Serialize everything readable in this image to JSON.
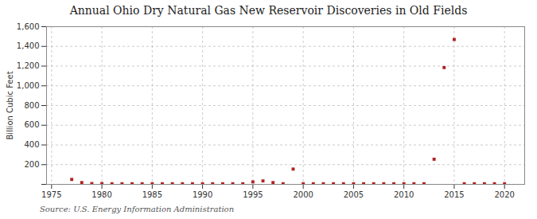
{
  "chart_data": {
    "type": "scatter",
    "title": "Annual Ohio Dry Natural Gas New Reservoir Discoveries in Old Fields",
    "ylabel": "Billion Cubic Feet",
    "annotation": "Source: U.S. Energy Information Administration",
    "x": [
      1977,
      1978,
      1979,
      1980,
      1981,
      1982,
      1983,
      1984,
      1985,
      1986,
      1987,
      1988,
      1989,
      1990,
      1991,
      1992,
      1993,
      1994,
      1995,
      1996,
      1997,
      1998,
      1999,
      2000,
      2001,
      2002,
      2003,
      2004,
      2005,
      2006,
      2007,
      2008,
      2009,
      2010,
      2011,
      2012,
      2013,
      2014,
      2015,
      2016,
      2017,
      2018,
      2019,
      2020
    ],
    "values": [
      50,
      18,
      8,
      8,
      6,
      6,
      6,
      6,
      6,
      6,
      6,
      6,
      6,
      6,
      6,
      6,
      6,
      6,
      25,
      35,
      18,
      6,
      155,
      6,
      6,
      6,
      6,
      6,
      6,
      6,
      6,
      6,
      6,
      6,
      6,
      6,
      255,
      1185,
      1470,
      6,
      6,
      6,
      6,
      6
    ],
    "color": "#b22222",
    "marker": "square",
    "xlim": [
      1974.5,
      2022
    ],
    "xticks": [
      1975,
      1980,
      1985,
      1990,
      1995,
      2000,
      2005,
      2010,
      2015,
      2020
    ],
    "ylim": [
      0,
      1600
    ],
    "yticks": [
      {
        "value": 0,
        "label": ""
      },
      200,
      400,
      600,
      800,
      {
        "value": 1000,
        "label": "1,000"
      },
      {
        "value": 1200,
        "label": "1,200"
      },
      {
        "value": 1400,
        "label": "1,400"
      },
      {
        "value": 1600,
        "label": "1,600"
      }
    ],
    "grid": true
  }
}
